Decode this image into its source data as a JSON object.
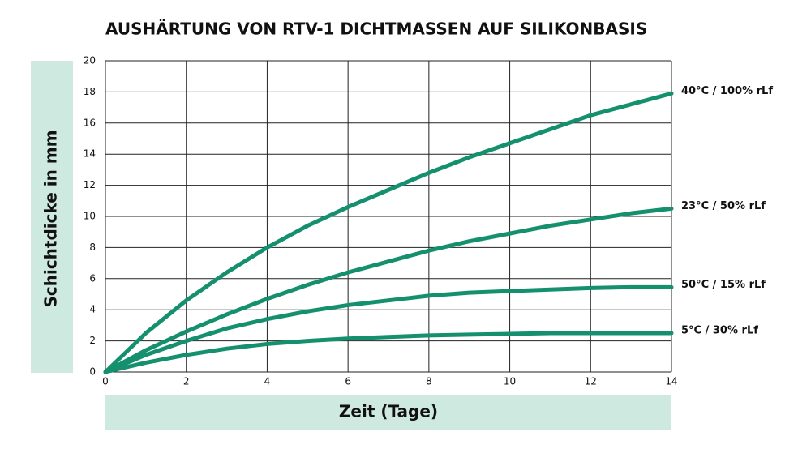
{
  "chart_data": {
    "type": "line",
    "title": "AUSHÄRTUNG VON RTV-1 DICHTMASSEN AUF SILIKONBASIS",
    "xlabel": "Zeit (Tage)",
    "ylabel": "Schichtdicke in mm",
    "x": [
      0,
      1,
      2,
      3,
      4,
      5,
      6,
      7,
      8,
      9,
      10,
      11,
      12,
      13,
      14
    ],
    "series": [
      {
        "name": "40°C / 100% rLf",
        "color": "#15906f",
        "values": [
          0,
          2.5,
          4.6,
          6.4,
          8.0,
          9.4,
          10.6,
          11.7,
          12.8,
          13.8,
          14.7,
          15.6,
          16.5,
          17.2,
          17.9
        ]
      },
      {
        "name": "23°C / 50% rLf",
        "color": "#15906f",
        "values": [
          0,
          1.4,
          2.6,
          3.7,
          4.7,
          5.6,
          6.4,
          7.1,
          7.8,
          8.4,
          8.9,
          9.4,
          9.8,
          10.2,
          10.5
        ]
      },
      {
        "name": "50°C / 15% rLf",
        "color": "#15906f",
        "values": [
          0,
          1.1,
          2.0,
          2.8,
          3.4,
          3.9,
          4.3,
          4.6,
          4.9,
          5.1,
          5.2,
          5.3,
          5.4,
          5.45,
          5.45
        ]
      },
      {
        "name": "5°C / 30% rLf",
        "color": "#15906f",
        "values": [
          0,
          0.6,
          1.1,
          1.5,
          1.8,
          2.0,
          2.15,
          2.25,
          2.35,
          2.4,
          2.45,
          2.5,
          2.5,
          2.5,
          2.5
        ]
      }
    ],
    "xlim": [
      0,
      14
    ],
    "xticks": [
      0,
      2,
      4,
      6,
      8,
      10,
      12,
      14
    ],
    "ylim": [
      0,
      20
    ],
    "yticks": [
      0,
      2,
      4,
      6,
      8,
      10,
      12,
      14,
      16,
      18,
      20
    ],
    "grid": true
  }
}
